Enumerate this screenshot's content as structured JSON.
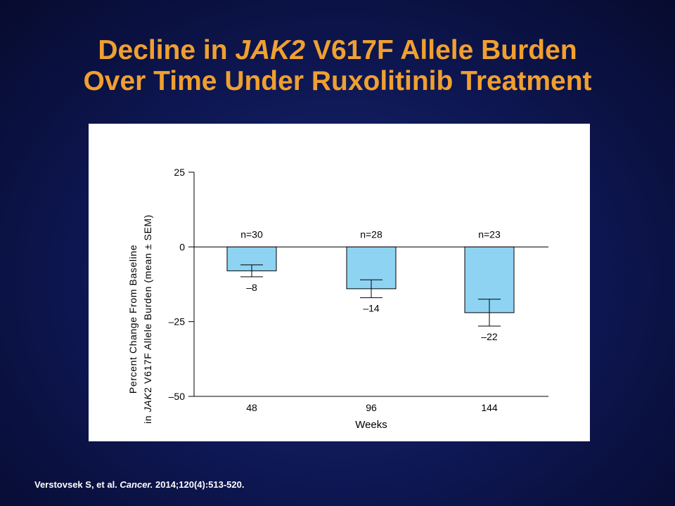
{
  "slide": {
    "title_line1_pre": "Decline in ",
    "title_line1_em": "JAK2",
    "title_line1_post": " V617F Allele Burden",
    "title_line2": "Over Time Under Ruxolitinib Treatment",
    "citation_pre": "Verstovsek S, et al. ",
    "citation_journal": "Cancer.",
    "citation_post": " 2014;120(4):513-520."
  },
  "chart_data": {
    "type": "bar",
    "categories": [
      "48",
      "96",
      "144"
    ],
    "values": [
      -8,
      -14,
      -22
    ],
    "value_labels": [
      "–8",
      "–14",
      "–22"
    ],
    "sem": [
      2,
      3,
      4.5
    ],
    "n_labels": [
      "n=30",
      "n=28",
      "n=23"
    ],
    "xlabel": "Weeks",
    "ylabel_line1": "Percent Change From Baseline",
    "ylabel_line2_pre": "in ",
    "ylabel_line2_em": "JAK",
    "ylabel_line2_post": "2 V617F Allele Burden (mean ± SEM)",
    "ylim": [
      -50,
      25
    ],
    "yticks": [
      25,
      0,
      -25,
      -50
    ],
    "ytick_labels": [
      "25",
      "0",
      "–25",
      "–50"
    ],
    "bar_color": "#8fd3f2",
    "grid": false,
    "legend": "none"
  }
}
